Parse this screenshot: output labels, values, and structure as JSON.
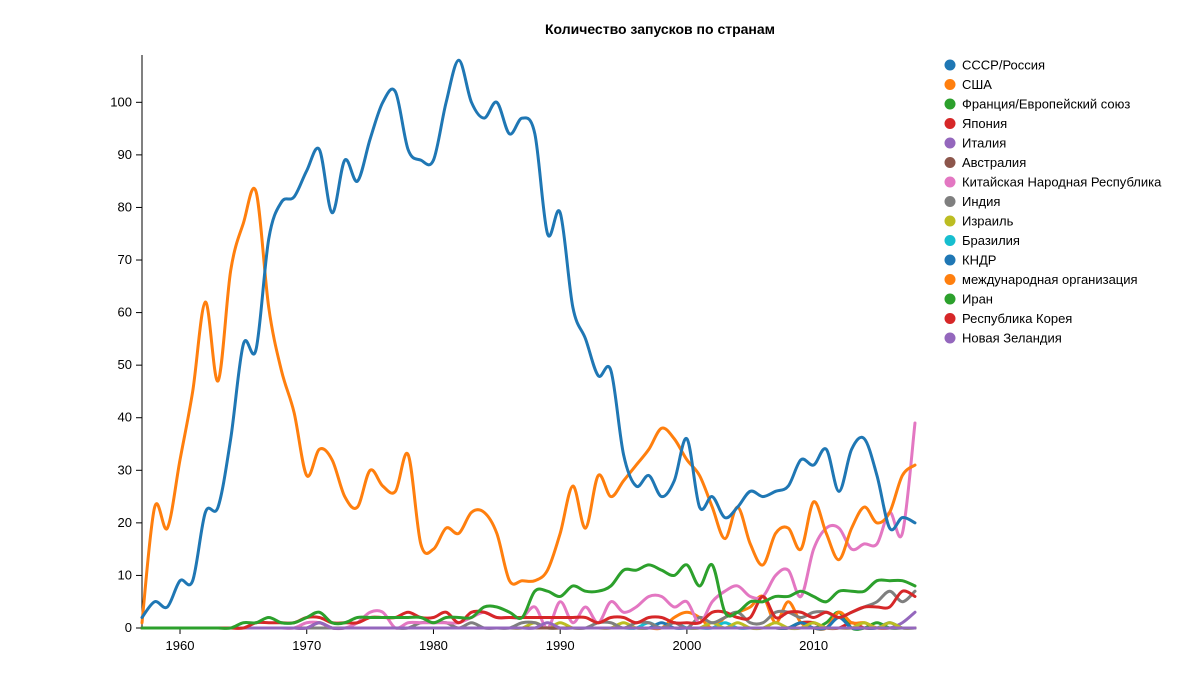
{
  "chart_data": {
    "type": "line",
    "title": "Количество запусков по странам",
    "xlabel": "",
    "ylabel": "",
    "xlim": [
      1957,
      2018
    ],
    "ylim": [
      0,
      109
    ],
    "x_ticks": [
      1960,
      1970,
      1980,
      1990,
      2000,
      2010
    ],
    "y_ticks": [
      0,
      10,
      20,
      30,
      40,
      50,
      60,
      70,
      80,
      90,
      100
    ],
    "legend_position": "right",
    "x": [
      1957,
      1958,
      1959,
      1960,
      1961,
      1962,
      1963,
      1964,
      1965,
      1966,
      1967,
      1968,
      1969,
      1970,
      1971,
      1972,
      1973,
      1974,
      1975,
      1976,
      1977,
      1978,
      1979,
      1980,
      1981,
      1982,
      1983,
      1984,
      1985,
      1986,
      1987,
      1988,
      1989,
      1990,
      1991,
      1992,
      1993,
      1994,
      1995,
      1996,
      1997,
      1998,
      1999,
      2000,
      2001,
      2002,
      2003,
      2004,
      2005,
      2006,
      2007,
      2008,
      2009,
      2010,
      2011,
      2012,
      2013,
      2014,
      2015,
      2016,
      2017,
      2018
    ],
    "series": [
      {
        "name": "СССР/Россия",
        "color": "#1f77b4",
        "values": [
          2,
          5,
          4,
          9,
          9,
          22,
          23,
          36,
          54,
          53,
          74,
          81,
          82,
          87,
          91,
          79,
          89,
          85,
          93,
          100,
          102,
          91,
          89,
          89,
          100,
          108,
          100,
          97,
          100,
          94,
          97,
          94,
          75,
          79,
          61,
          55,
          48,
          49,
          33,
          27,
          29,
          25,
          28,
          36,
          23,
          25,
          21,
          23,
          26,
          25,
          26,
          27,
          32,
          31,
          34,
          26,
          34,
          36,
          29,
          19,
          21,
          20
        ]
      },
      {
        "name": "США",
        "color": "#ff7f0e",
        "values": [
          1,
          23,
          19,
          32,
          45,
          62,
          47,
          68,
          77,
          83,
          61,
          49,
          41,
          29,
          34,
          32,
          25,
          23,
          30,
          27,
          26,
          33,
          16,
          15,
          19,
          18,
          22,
          22,
          18,
          9,
          9,
          9,
          11,
          18,
          27,
          19,
          29,
          25,
          28,
          31,
          34,
          38,
          36,
          32,
          29,
          23,
          17,
          23,
          16,
          12,
          18,
          19,
          15,
          24,
          18,
          13,
          19,
          23,
          20,
          22,
          29,
          31
        ]
      },
      {
        "name": "Франция/Европейский союз",
        "color": "#2ca02c",
        "values": [
          0,
          0,
          0,
          0,
          0,
          0,
          0,
          0,
          1,
          1,
          2,
          1,
          1,
          2,
          3,
          1,
          1,
          2,
          2,
          2,
          2,
          2,
          2,
          1,
          2,
          2,
          2,
          4,
          4,
          3,
          2,
          7,
          7,
          6,
          8,
          7,
          7,
          8,
          11,
          11,
          12,
          11,
          10,
          12,
          8,
          12,
          3,
          3,
          5,
          5,
          6,
          6,
          7,
          6,
          5,
          7,
          7,
          7,
          9,
          9,
          9,
          8
        ]
      },
      {
        "name": "Япония",
        "color": "#d62728",
        "values": [
          0,
          0,
          0,
          0,
          0,
          0,
          0,
          0,
          0,
          1,
          1,
          1,
          1,
          2,
          2,
          1,
          1,
          1,
          2,
          2,
          2,
          3,
          2,
          2,
          3,
          1,
          3,
          3,
          2,
          2,
          2,
          2,
          2,
          2,
          2,
          2,
          1,
          2,
          2,
          1,
          2,
          2,
          1,
          1,
          1,
          3,
          3,
          2,
          2,
          6,
          2,
          3,
          3,
          2,
          3,
          2,
          3,
          4,
          4,
          4,
          7,
          6
        ]
      },
      {
        "name": "Италия",
        "color": "#9467bd",
        "values": [
          0,
          0,
          0,
          0,
          0,
          0,
          0,
          0,
          0,
          0,
          0,
          0,
          0,
          0,
          1,
          0,
          0,
          0,
          0,
          0,
          0,
          0,
          0,
          0,
          0,
          0,
          0,
          0,
          0,
          0,
          0,
          0,
          1,
          0,
          0,
          0,
          0,
          0,
          0,
          0,
          0,
          0,
          0,
          0,
          0,
          0,
          0,
          0,
          0,
          0,
          0,
          0,
          0,
          0,
          0,
          0,
          0,
          0,
          0,
          0,
          0,
          0
        ]
      },
      {
        "name": "Австралия",
        "color": "#8c564b",
        "values": [
          0,
          0,
          0,
          0,
          0,
          0,
          0,
          0,
          0,
          0,
          0,
          0,
          0,
          0,
          1,
          0,
          0,
          0,
          0,
          0,
          0,
          0,
          0,
          0,
          0,
          0,
          0,
          0,
          0,
          0,
          0,
          0,
          0,
          0,
          0,
          0,
          0,
          0,
          0,
          0,
          0,
          0,
          0,
          0,
          0,
          0,
          0,
          0,
          0,
          0,
          0,
          0,
          0,
          0,
          0,
          0,
          0,
          0,
          0,
          0,
          0,
          0
        ]
      },
      {
        "name": "Китайская Народная Республика",
        "color": "#e377c2",
        "values": [
          0,
          0,
          0,
          0,
          0,
          0,
          0,
          0,
          0,
          0,
          0,
          0,
          0,
          1,
          1,
          0,
          0,
          1,
          3,
          3,
          0,
          1,
          1,
          1,
          1,
          1,
          2,
          3,
          2,
          2,
          2,
          4,
          0,
          5,
          1,
          4,
          1,
          5,
          3,
          4,
          6,
          6,
          4,
          5,
          1,
          5,
          7,
          8,
          6,
          6,
          10,
          11,
          6,
          15,
          19,
          19,
          15,
          16,
          16,
          22,
          18,
          39
        ]
      },
      {
        "name": "Индия",
        "color": "#7f7f7f",
        "values": [
          0,
          0,
          0,
          0,
          0,
          0,
          0,
          0,
          0,
          0,
          0,
          0,
          0,
          0,
          0,
          0,
          0,
          0,
          0,
          0,
          0,
          0,
          1,
          1,
          1,
          0,
          1,
          0,
          0,
          0,
          1,
          1,
          0,
          0,
          0,
          0,
          1,
          1,
          0,
          1,
          1,
          0,
          1,
          0,
          2,
          1,
          2,
          3,
          1,
          1,
          3,
          3,
          2,
          3,
          3,
          2,
          3,
          4,
          5,
          7,
          5,
          7
        ]
      },
      {
        "name": "Израиль",
        "color": "#bcbd22",
        "values": [
          0,
          0,
          0,
          0,
          0,
          0,
          0,
          0,
          0,
          0,
          0,
          0,
          0,
          0,
          0,
          0,
          0,
          0,
          0,
          0,
          0,
          0,
          0,
          0,
          0,
          0,
          0,
          0,
          0,
          0,
          0,
          1,
          0,
          1,
          0,
          0,
          0,
          0,
          1,
          0,
          0,
          0,
          0,
          0,
          0,
          1,
          0,
          1,
          0,
          0,
          1,
          0,
          0,
          1,
          0,
          0,
          0,
          1,
          0,
          1,
          0,
          0
        ]
      },
      {
        "name": "Бразилия",
        "color": "#17becf",
        "values": [
          0,
          0,
          0,
          0,
          0,
          0,
          0,
          0,
          0,
          0,
          0,
          0,
          0,
          0,
          0,
          0,
          0,
          0,
          0,
          0,
          0,
          0,
          0,
          0,
          0,
          0,
          0,
          0,
          0,
          0,
          0,
          0,
          0,
          0,
          0,
          0,
          0,
          0,
          0,
          0,
          1,
          0,
          1,
          0,
          0,
          0,
          1,
          0,
          0,
          0,
          0,
          0,
          0,
          0,
          0,
          0,
          0,
          0,
          0,
          0,
          0,
          0
        ]
      },
      {
        "name": "КНДР",
        "color": "#1f77b4",
        "values": [
          0,
          0,
          0,
          0,
          0,
          0,
          0,
          0,
          0,
          0,
          0,
          0,
          0,
          0,
          0,
          0,
          0,
          0,
          0,
          0,
          0,
          0,
          0,
          0,
          0,
          0,
          0,
          0,
          0,
          0,
          0,
          0,
          0,
          0,
          0,
          0,
          0,
          0,
          0,
          0,
          0,
          1,
          0,
          0,
          0,
          0,
          0,
          0,
          0,
          0,
          0,
          0,
          1,
          0,
          0,
          2,
          0,
          0,
          0,
          1,
          0,
          0
        ]
      },
      {
        "name": "международная организация",
        "color": "#ff7f0e",
        "values": [
          0,
          0,
          0,
          0,
          0,
          0,
          0,
          0,
          0,
          0,
          0,
          0,
          0,
          0,
          0,
          0,
          0,
          0,
          0,
          0,
          0,
          0,
          0,
          0,
          0,
          0,
          0,
          0,
          0,
          0,
          0,
          0,
          0,
          0,
          0,
          0,
          0,
          0,
          0,
          0,
          0,
          0,
          2,
          3,
          2,
          0,
          2,
          3,
          4,
          6,
          1,
          5,
          1,
          0,
          0,
          3,
          1,
          1,
          0,
          0,
          0,
          0
        ]
      },
      {
        "name": "Иран",
        "color": "#2ca02c",
        "values": [
          0,
          0,
          0,
          0,
          0,
          0,
          0,
          0,
          0,
          0,
          0,
          0,
          0,
          0,
          0,
          0,
          0,
          0,
          0,
          0,
          0,
          0,
          0,
          0,
          0,
          0,
          0,
          0,
          0,
          0,
          0,
          0,
          0,
          0,
          0,
          0,
          0,
          0,
          0,
          0,
          0,
          0,
          0,
          0,
          0,
          0,
          0,
          0,
          0,
          0,
          0,
          0,
          1,
          0,
          1,
          3,
          0,
          0,
          1,
          0,
          0,
          0
        ]
      },
      {
        "name": "Республика Корея",
        "color": "#d62728",
        "values": [
          0,
          0,
          0,
          0,
          0,
          0,
          0,
          0,
          0,
          0,
          0,
          0,
          0,
          0,
          0,
          0,
          0,
          0,
          0,
          0,
          0,
          0,
          0,
          0,
          0,
          0,
          0,
          0,
          0,
          0,
          0,
          0,
          0,
          0,
          0,
          0,
          0,
          0,
          0,
          0,
          0,
          0,
          0,
          0,
          0,
          0,
          0,
          0,
          0,
          0,
          0,
          0,
          1,
          1,
          0,
          0,
          1,
          0,
          0,
          0,
          0,
          0
        ]
      },
      {
        "name": "Новая Зеландия",
        "color": "#9467bd",
        "values": [
          0,
          0,
          0,
          0,
          0,
          0,
          0,
          0,
          0,
          0,
          0,
          0,
          0,
          0,
          0,
          0,
          0,
          0,
          0,
          0,
          0,
          0,
          0,
          0,
          0,
          0,
          0,
          0,
          0,
          0,
          0,
          0,
          0,
          0,
          0,
          0,
          0,
          0,
          0,
          0,
          0,
          0,
          0,
          0,
          0,
          0,
          0,
          0,
          0,
          0,
          0,
          0,
          0,
          0,
          0,
          0,
          0,
          0,
          0,
          0,
          1,
          3
        ]
      }
    ]
  }
}
